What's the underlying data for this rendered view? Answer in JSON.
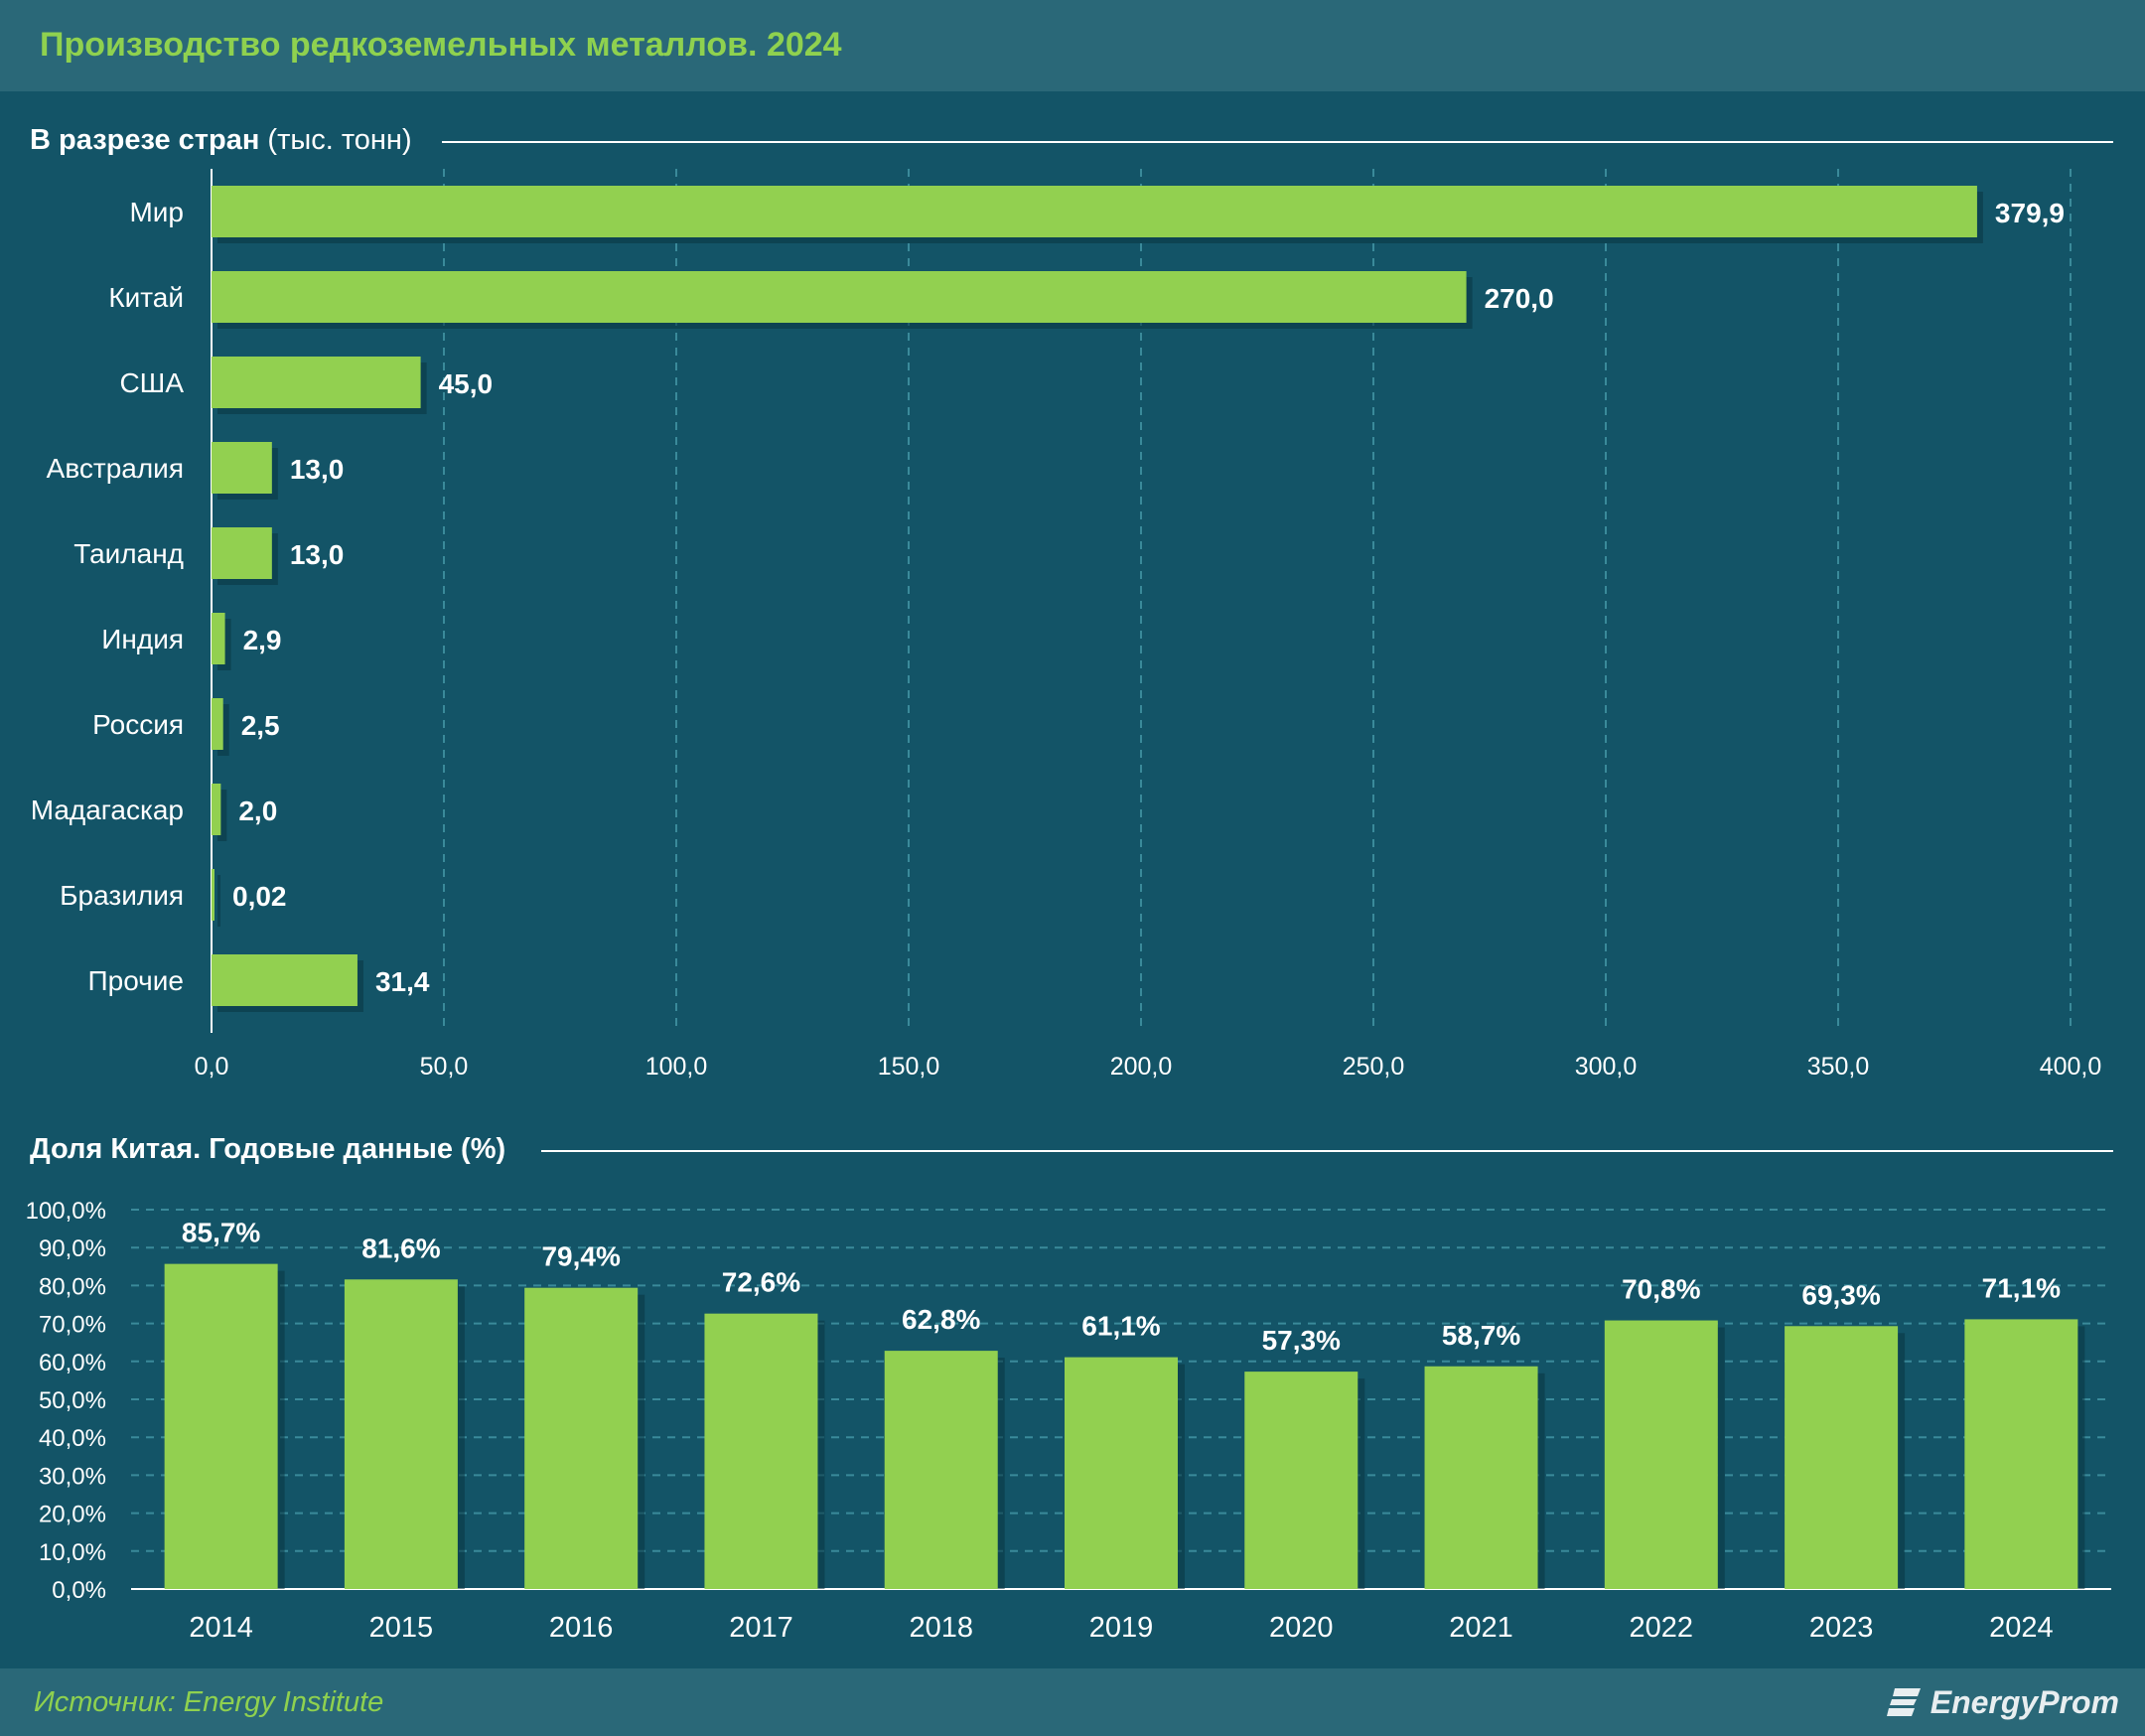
{
  "header": {
    "title": "Производство редкоземельных металлов. 2024"
  },
  "section1": {
    "title_bold": "В разрезе стран",
    "title_light": " (тыс. тонн)"
  },
  "section2": {
    "title": "Доля Китая. Годовые данные (%)"
  },
  "footer": {
    "source": "Источник: Energy Institute",
    "logo_text": "EnergyProm"
  },
  "colors": {
    "bar": "#92d050",
    "background": "#135467",
    "header": "#2a6878",
    "title": "#8fd14f",
    "grid": "#3a8a9a"
  },
  "chart_data": [
    {
      "type": "bar",
      "orientation": "horizontal",
      "categories": [
        "Мир",
        "Китай",
        "США",
        "Австралия",
        "Таиланд",
        "Индия",
        "Россия",
        "Мадагаскар",
        "Бразилия",
        "Прочие"
      ],
      "values": [
        379.9,
        270.0,
        45.0,
        13.0,
        13.0,
        2.9,
        2.5,
        2.0,
        0.02,
        31.4
      ],
      "value_labels": [
        "379,9",
        "270,0",
        "45,0",
        "13,0",
        "13,0",
        "2,9",
        "2,5",
        "2,0",
        "0,02",
        "31,4"
      ],
      "xlim": [
        0,
        400
      ],
      "x_ticks": [
        "0,0",
        "50,0",
        "100,0",
        "150,0",
        "200,0",
        "250,0",
        "300,0",
        "350,0",
        "400,0"
      ],
      "grid": true
    },
    {
      "type": "bar",
      "orientation": "vertical",
      "categories": [
        "2014",
        "2015",
        "2016",
        "2017",
        "2018",
        "2019",
        "2020",
        "2021",
        "2022",
        "2023",
        "2024"
      ],
      "values": [
        85.7,
        81.6,
        79.4,
        72.6,
        62.8,
        61.1,
        57.3,
        58.7,
        70.8,
        69.3,
        71.1
      ],
      "value_labels": [
        "85,7%",
        "81,6%",
        "79,4%",
        "72,6%",
        "62,8%",
        "61,1%",
        "57,3%",
        "58,7%",
        "70,8%",
        "69,3%",
        "71,1%"
      ],
      "ylim": [
        0,
        100
      ],
      "y_ticks": [
        "0,0%",
        "10,0%",
        "20,0%",
        "30,0%",
        "40,0%",
        "50,0%",
        "60,0%",
        "70,0%",
        "80,0%",
        "90,0%",
        "100,0%"
      ],
      "grid": true
    }
  ]
}
